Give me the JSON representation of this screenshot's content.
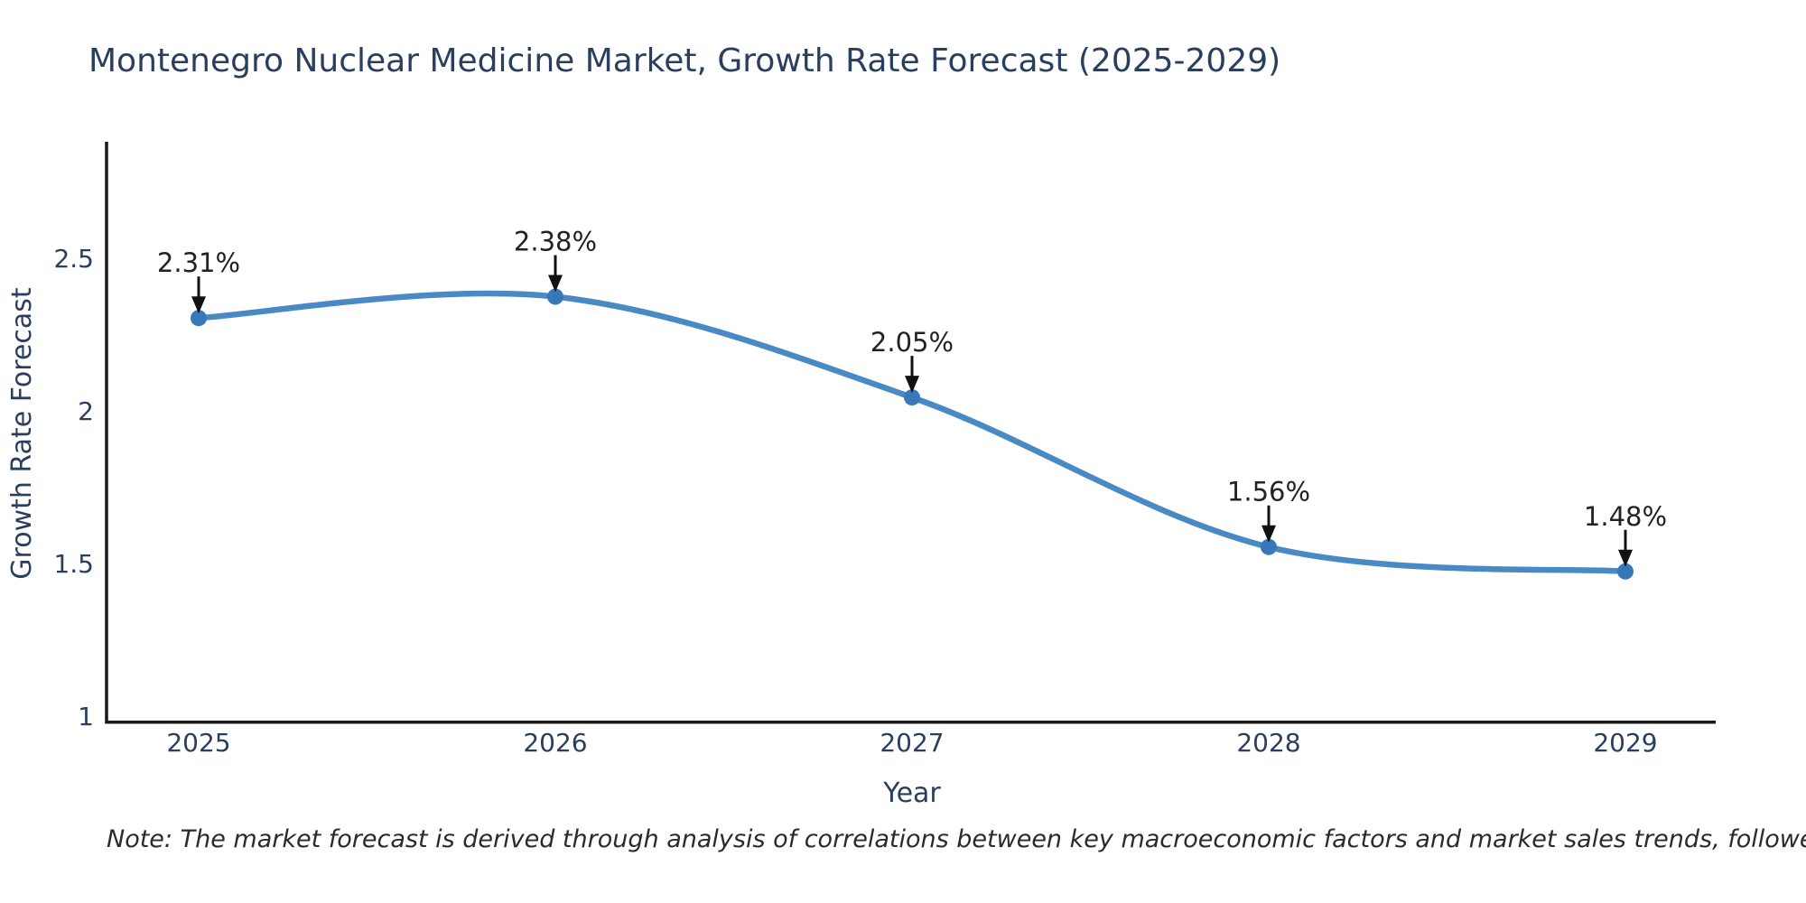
{
  "page": {
    "background": "#ffffff"
  },
  "note": "Note: The market forecast is derived through analysis of correlations between key macroeconomic factors and market sales trends, followed by predictive modeling to project future sales",
  "chart_data": {
    "type": "line",
    "line_shape": "spline",
    "title": "Montenegro Nuclear Medicine Market, Growth Rate Forecast (2025-2029)",
    "xlabel": "Year",
    "ylabel": "Growth Rate Forecast",
    "x": [
      2025,
      2026,
      2027,
      2028,
      2029
    ],
    "values": [
      2.31,
      2.38,
      2.05,
      1.56,
      1.48
    ],
    "point_labels": [
      "2.31%",
      "2.38%",
      "2.05%",
      "1.56%",
      "1.48%"
    ],
    "x_tick_labels": [
      "2025",
      "2026",
      "2027",
      "2028",
      "2029"
    ],
    "y_ticks": [
      2.5,
      2,
      1.5,
      1
    ],
    "y_tick_labels": [
      "2.5",
      "2",
      "1.5",
      "1"
    ],
    "y_range": [
      0.97,
      2.89
    ],
    "grid": "off",
    "legend": "none",
    "annotations": "arrow-down-to-point",
    "colors": {
      "line": "#4a8ac4",
      "marker": "#3878b8",
      "axis": "#1a1a1a",
      "axis_text": "#2a3f5f",
      "annotation_text": "#222222",
      "arrow": "#111111",
      "note_text": "#2b2b2b"
    }
  }
}
